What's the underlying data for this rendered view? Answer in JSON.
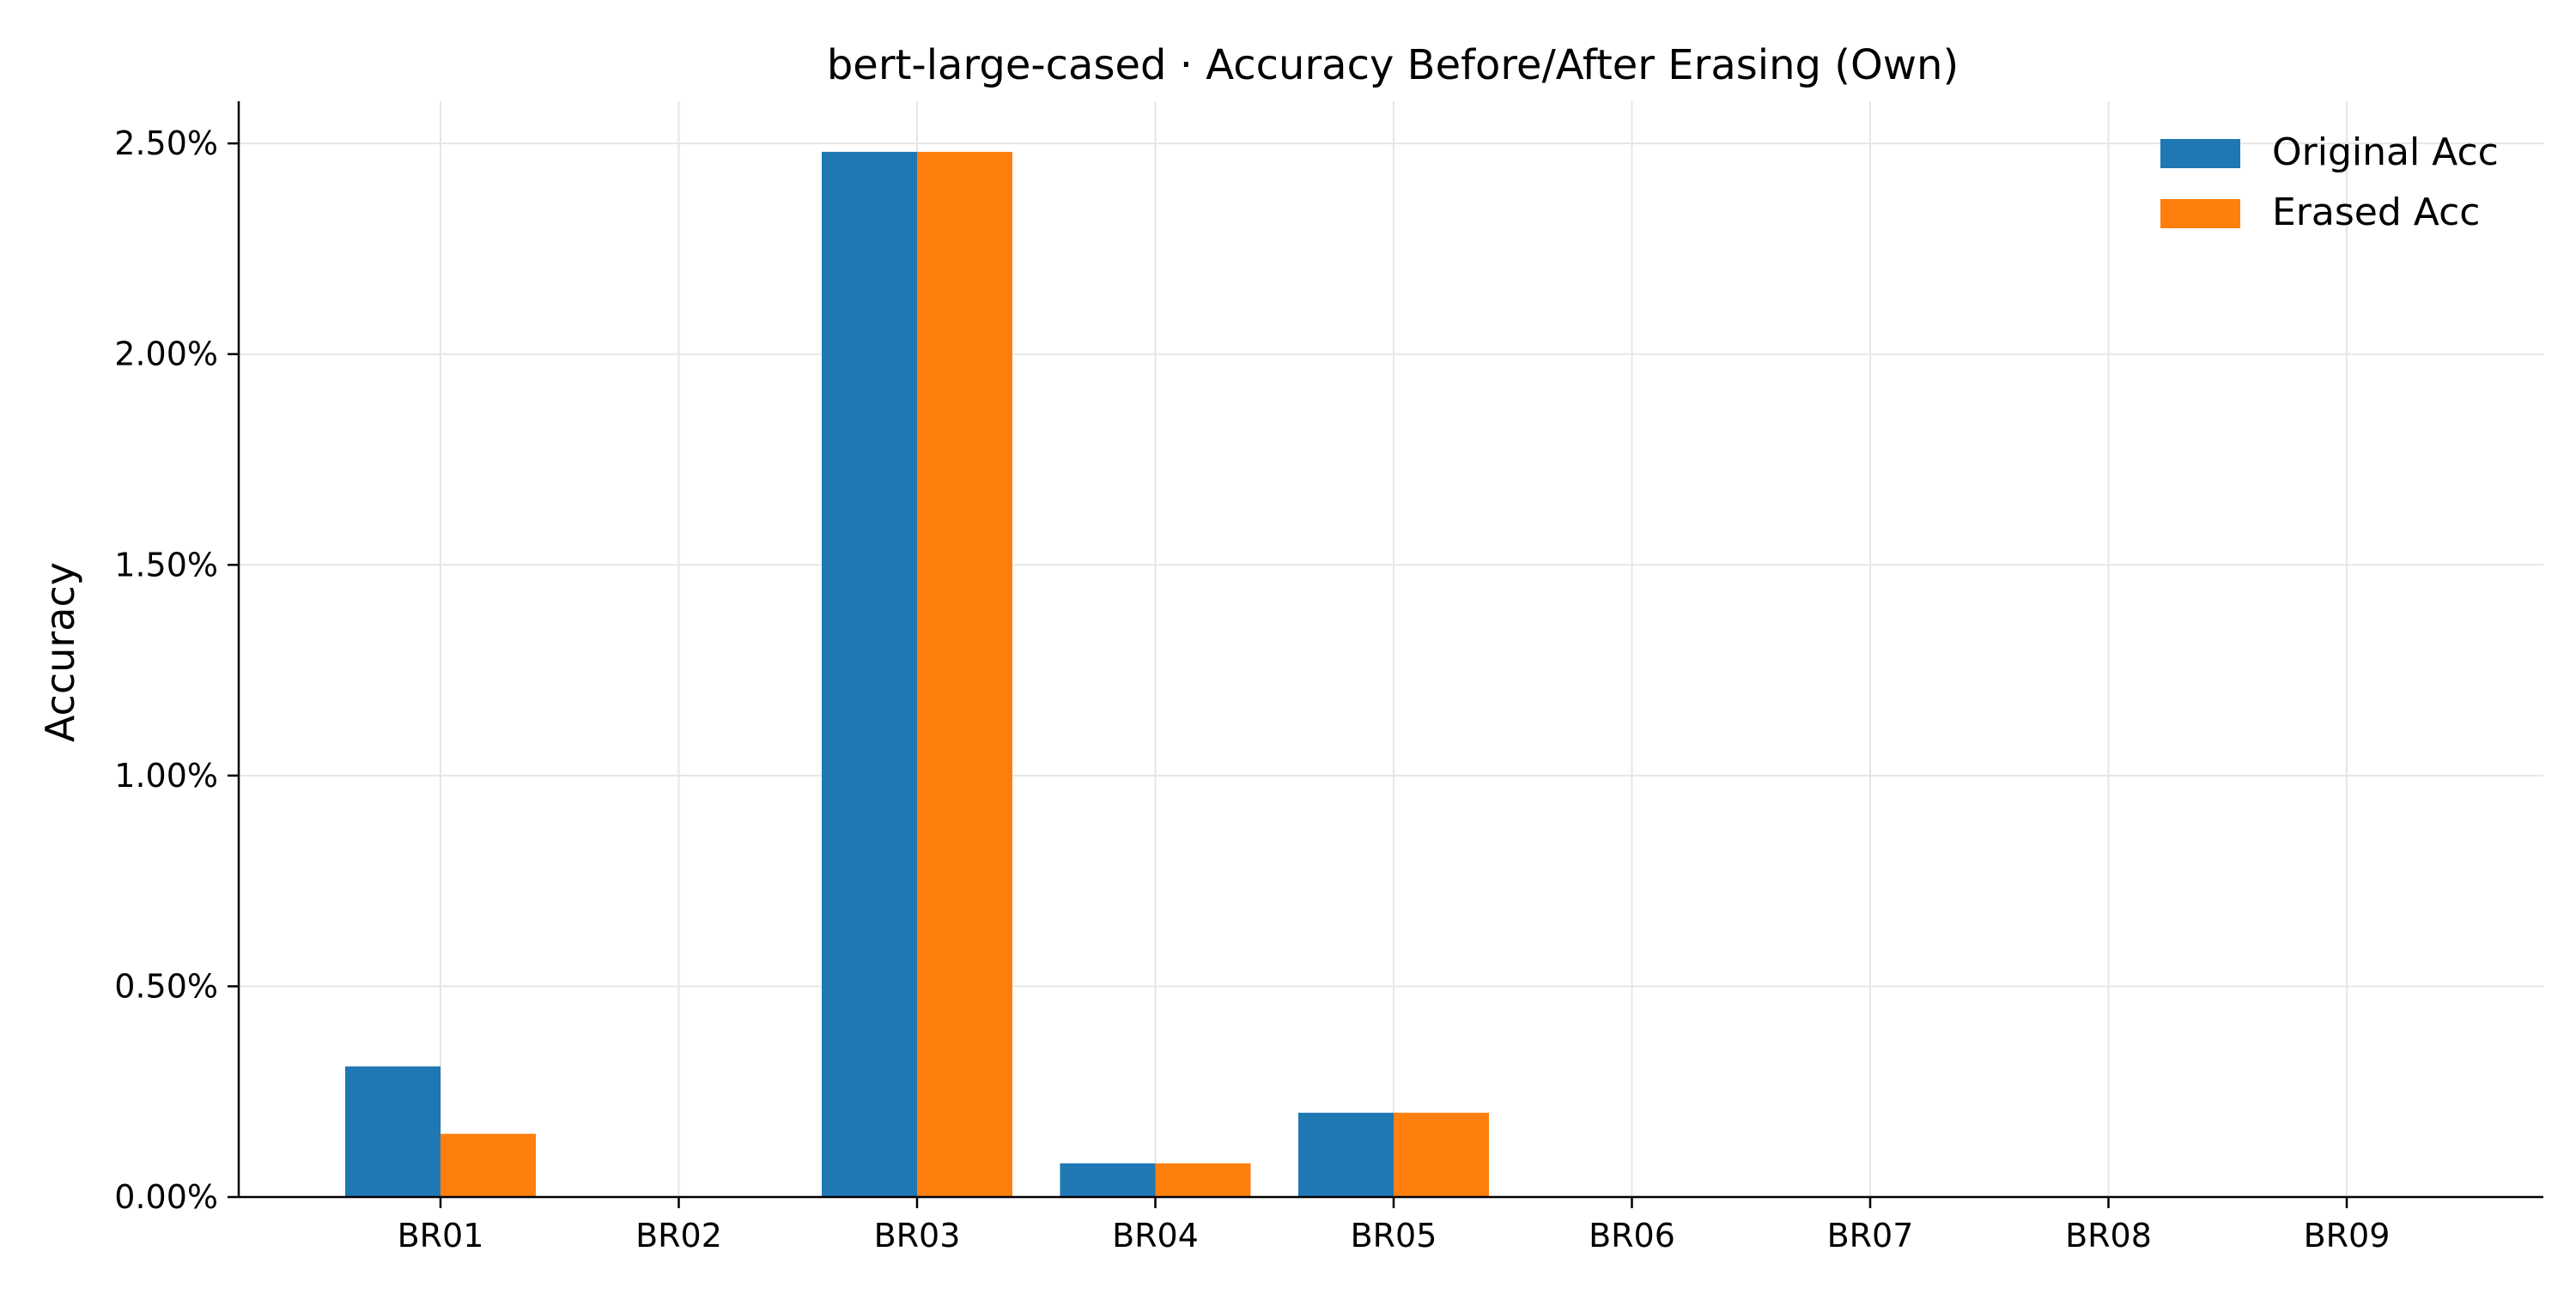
{
  "chart_data": {
    "type": "bar",
    "title": "bert-large-cased · Accuracy Before/After Erasing (Own)",
    "xlabel": "",
    "ylabel": "Accuracy",
    "categories": [
      "BR01",
      "BR02",
      "BR03",
      "BR04",
      "BR05",
      "BR06",
      "BR07",
      "BR08",
      "BR09"
    ],
    "series": [
      {
        "name": "Original Acc",
        "color": "#1f77b4",
        "values": [
          0.31,
          0,
          2.48,
          0.08,
          0.2,
          0,
          0,
          0,
          0
        ]
      },
      {
        "name": "Erased Acc",
        "color": "#ff7f0e",
        "values": [
          0.15,
          0,
          2.48,
          0.08,
          0.2,
          0,
          0,
          0,
          0
        ]
      }
    ],
    "ylim": [
      0,
      2.6
    ],
    "yticks": [
      {
        "value": 0,
        "label": "0.00%"
      },
      {
        "value": 0.5,
        "label": "0.50%"
      },
      {
        "value": 1.0,
        "label": "1.00%"
      },
      {
        "value": 1.5,
        "label": "1.50%"
      },
      {
        "value": 2.0,
        "label": "2.00%"
      },
      {
        "value": 2.5,
        "label": "2.50%"
      }
    ],
    "grid": true,
    "legend_position": "top-right"
  }
}
